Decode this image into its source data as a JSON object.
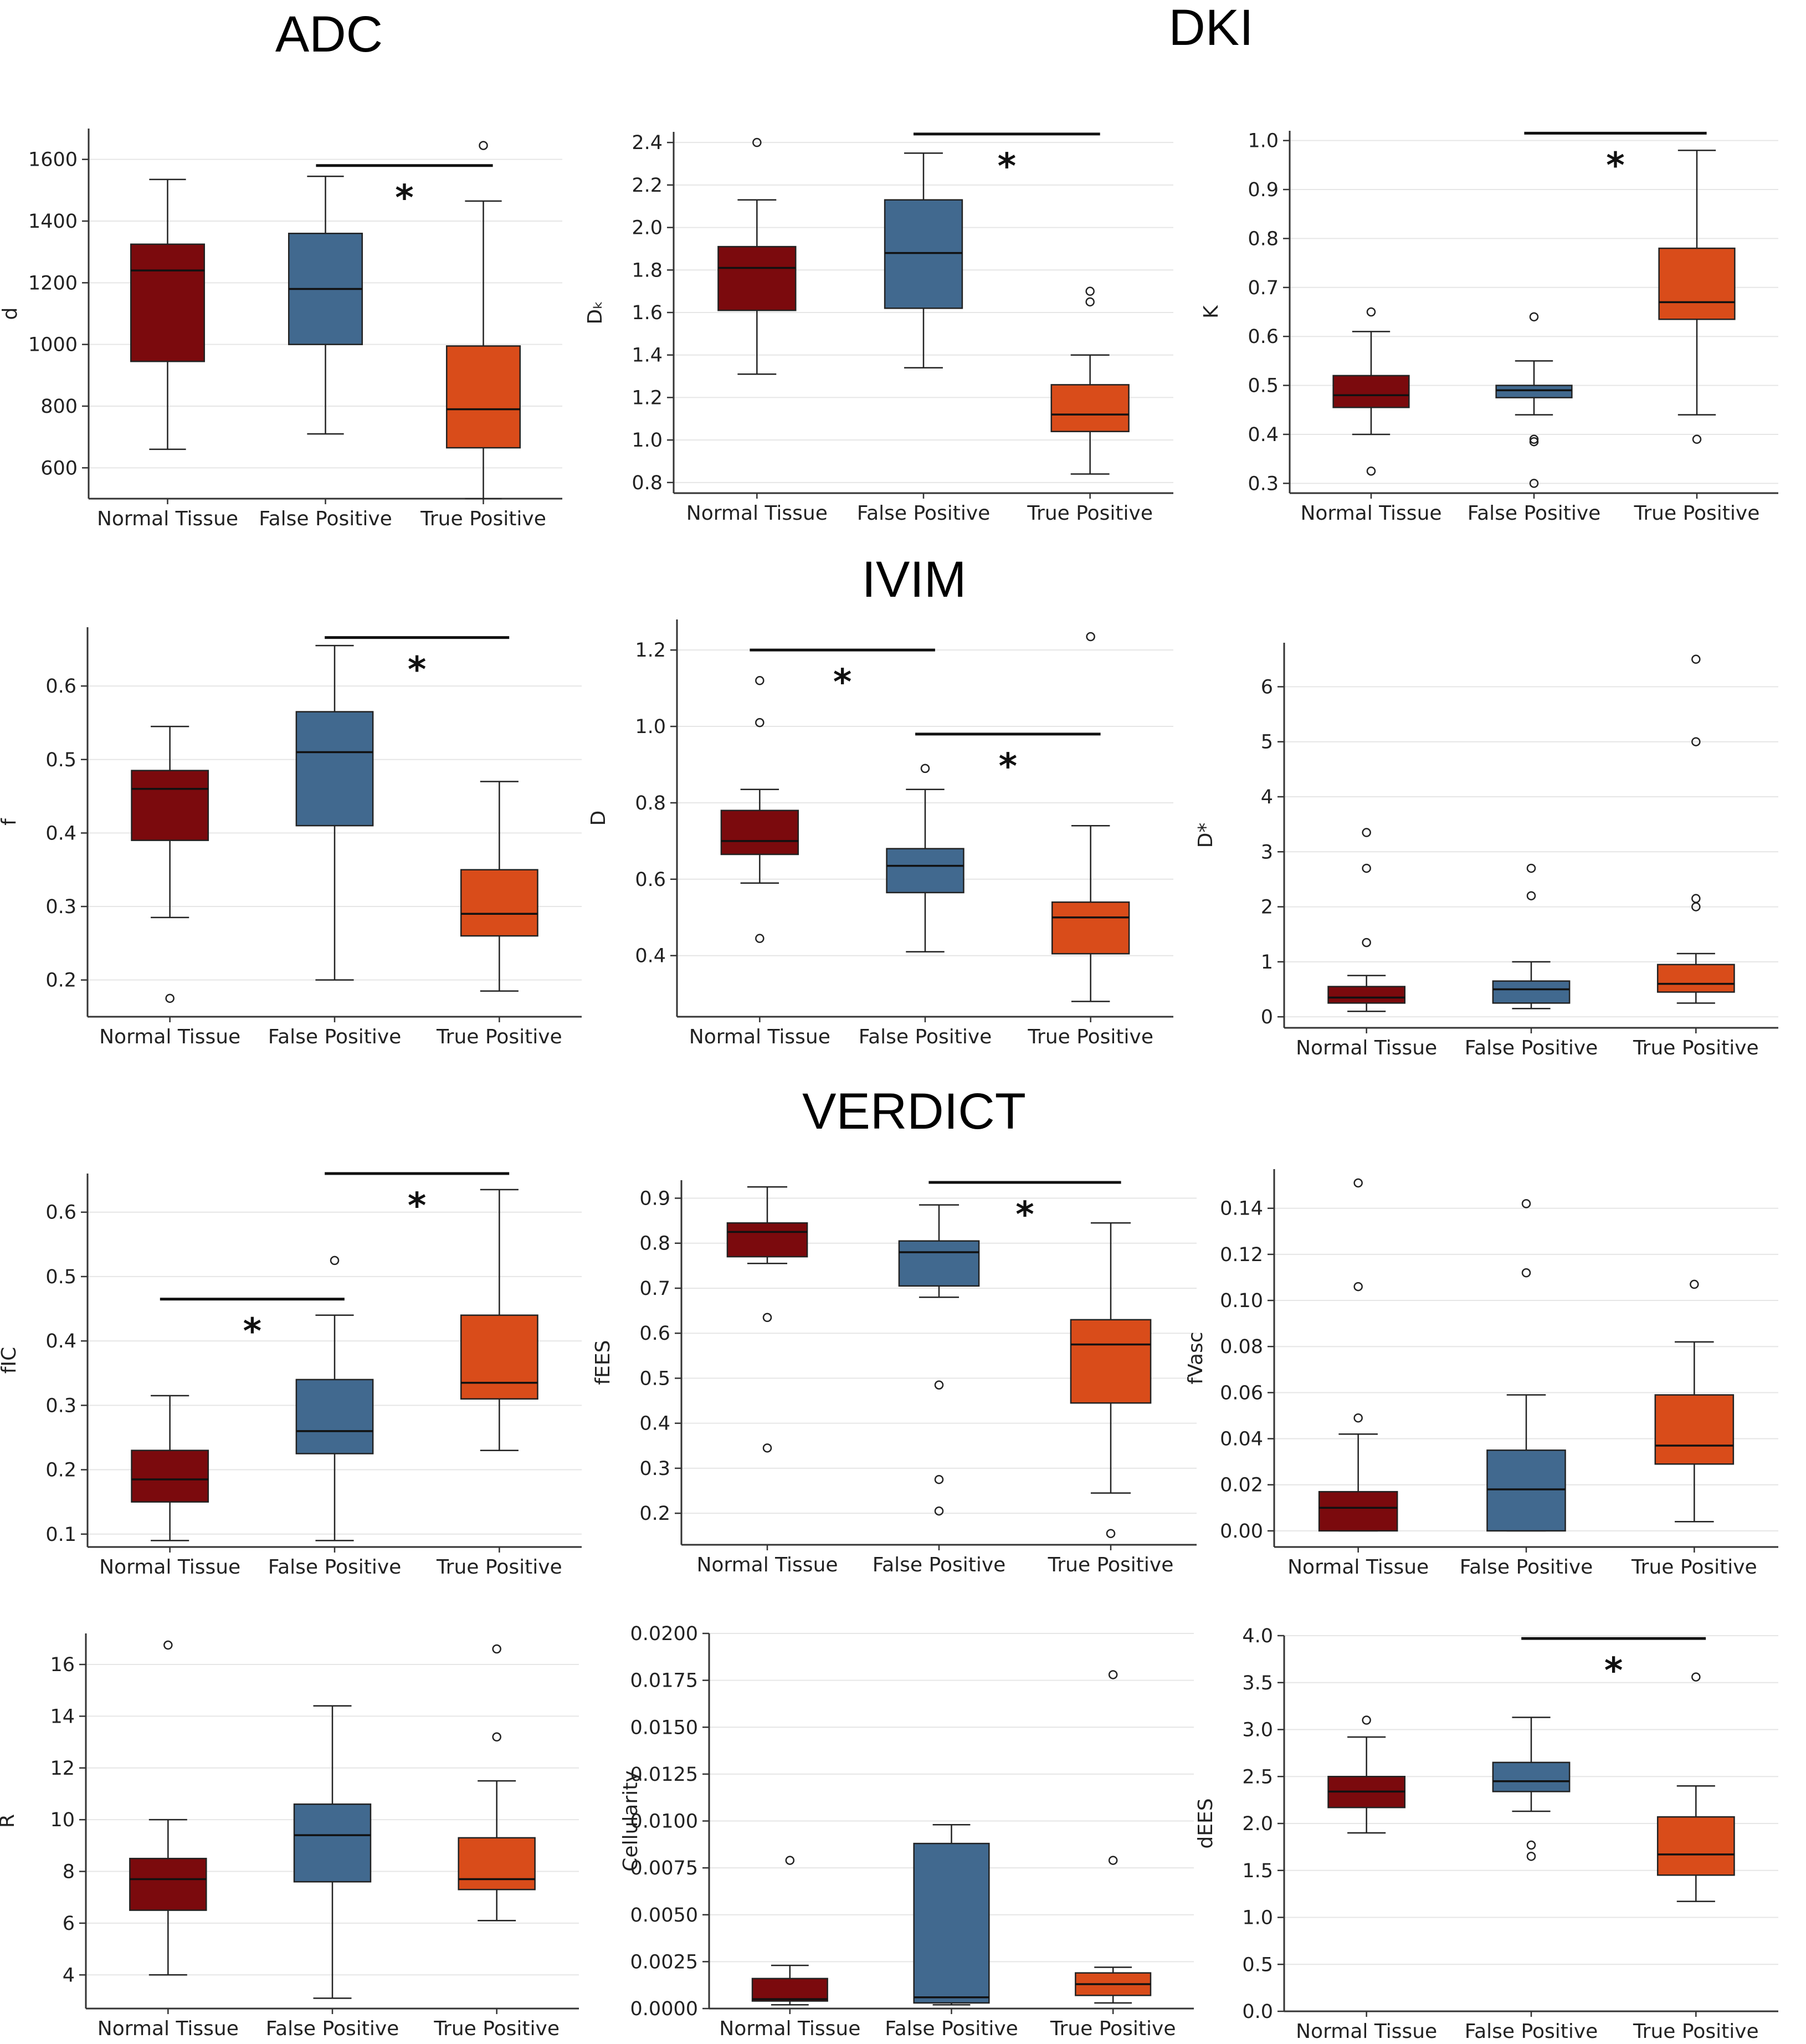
{
  "titles": {
    "adc": "ADC",
    "dki": "DKI",
    "ivim": "IVIM",
    "verdict": "VERDICT"
  },
  "groups": [
    "Normal Tissue",
    "False Positive",
    "True Positive"
  ],
  "colors": {
    "normal": "#7b0a0d",
    "false_positive": "#41698f",
    "true_positive": "#d94c1a",
    "edge": "#222222",
    "grid": "#e6e6e6"
  },
  "chart_data": [
    {
      "type": "box",
      "panel": "ADC",
      "ylabel": "d",
      "ylim": [
        500,
        1700
      ],
      "yticks": [
        600,
        800,
        1000,
        1200,
        1400,
        1600
      ],
      "tick_decimals": 0,
      "categories": [
        "Normal Tissue",
        "False Positive",
        "True Positive"
      ],
      "boxes": [
        {
          "whislo": 660,
          "q1": 945,
          "med": 1240,
          "q3": 1325,
          "whishi": 1535,
          "fliers": []
        },
        {
          "whislo": 710,
          "q1": 1000,
          "med": 1180,
          "q3": 1360,
          "whishi": 1545,
          "fliers": []
        },
        {
          "whislo": 500,
          "q1": 665,
          "med": 790,
          "q3": 995,
          "whishi": 1465,
          "fliers": [
            1645
          ]
        }
      ],
      "significance": [
        {
          "from": 1,
          "to": 2,
          "y": 1580,
          "label": "*"
        }
      ]
    },
    {
      "type": "box",
      "panel": "DKI",
      "ylabel": "Dₖ",
      "ylim": [
        0.75,
        2.45
      ],
      "yticks": [
        0.8,
        1.0,
        1.2,
        1.4,
        1.6,
        1.8,
        2.0,
        2.2,
        2.4
      ],
      "tick_decimals": 1,
      "categories": [
        "Normal Tissue",
        "False Positive",
        "True Positive"
      ],
      "boxes": [
        {
          "whislo": 1.31,
          "q1": 1.61,
          "med": 1.81,
          "q3": 1.91,
          "whishi": 2.13,
          "fliers": [
            2.4
          ]
        },
        {
          "whislo": 1.34,
          "q1": 1.62,
          "med": 1.88,
          "q3": 2.13,
          "whishi": 2.35,
          "fliers": []
        },
        {
          "whislo": 0.84,
          "q1": 1.04,
          "med": 1.12,
          "q3": 1.26,
          "whishi": 1.4,
          "fliers": [
            1.65,
            1.7
          ]
        }
      ],
      "significance": [
        {
          "from": 1,
          "to": 2,
          "y": 2.44,
          "label": "*"
        }
      ]
    },
    {
      "type": "box",
      "panel": "DKI",
      "ylabel": "K",
      "ylim": [
        0.28,
        1.02
      ],
      "yticks": [
        0.3,
        0.4,
        0.5,
        0.6,
        0.7,
        0.8,
        0.9,
        1.0
      ],
      "tick_decimals": 1,
      "categories": [
        "Normal Tissue",
        "False Positive",
        "True Positive"
      ],
      "boxes": [
        {
          "whislo": 0.4,
          "q1": 0.455,
          "med": 0.48,
          "q3": 0.52,
          "whishi": 0.61,
          "fliers": [
            0.65,
            0.325
          ]
        },
        {
          "whislo": 0.44,
          "q1": 0.475,
          "med": 0.49,
          "q3": 0.5,
          "whishi": 0.55,
          "fliers": [
            0.64,
            0.39,
            0.385,
            0.3
          ]
        },
        {
          "whislo": 0.44,
          "q1": 0.635,
          "med": 0.67,
          "q3": 0.78,
          "whishi": 0.98,
          "fliers": [
            0.39
          ]
        }
      ],
      "significance": [
        {
          "from": 1,
          "to": 2,
          "y": 1.015,
          "label": "*"
        }
      ]
    },
    {
      "type": "box",
      "panel": "IVIM",
      "ylabel": "f",
      "ylim": [
        0.15,
        0.68
      ],
      "yticks": [
        0.2,
        0.3,
        0.4,
        0.5,
        0.6
      ],
      "tick_decimals": 1,
      "categories": [
        "Normal Tissue",
        "False Positive",
        "True Positive"
      ],
      "boxes": [
        {
          "whislo": 0.285,
          "q1": 0.39,
          "med": 0.46,
          "q3": 0.485,
          "whishi": 0.545,
          "fliers": [
            0.175
          ]
        },
        {
          "whislo": 0.2,
          "q1": 0.41,
          "med": 0.51,
          "q3": 0.565,
          "whishi": 0.655,
          "fliers": []
        },
        {
          "whislo": 0.185,
          "q1": 0.26,
          "med": 0.29,
          "q3": 0.35,
          "whishi": 0.47,
          "fliers": []
        }
      ],
      "significance": [
        {
          "from": 1,
          "to": 2,
          "y": 0.666,
          "label": "*"
        }
      ]
    },
    {
      "type": "box",
      "panel": "IVIM",
      "ylabel": "D",
      "ylim": [
        0.24,
        1.28
      ],
      "yticks": [
        0.4,
        0.6,
        0.8,
        1.0,
        1.2
      ],
      "tick_decimals": 1,
      "categories": [
        "Normal Tissue",
        "False Positive",
        "True Positive"
      ],
      "boxes": [
        {
          "whislo": 0.59,
          "q1": 0.665,
          "med": 0.7,
          "q3": 0.78,
          "whishi": 0.835,
          "fliers": [
            1.12,
            1.01,
            0.445
          ]
        },
        {
          "whislo": 0.41,
          "q1": 0.565,
          "med": 0.635,
          "q3": 0.68,
          "whishi": 0.835,
          "fliers": [
            0.89
          ]
        },
        {
          "whislo": 0.28,
          "q1": 0.405,
          "med": 0.5,
          "q3": 0.54,
          "whishi": 0.74,
          "fliers": [
            1.235
          ]
        }
      ],
      "significance": [
        {
          "from": 0,
          "to": 1,
          "y": 1.2,
          "label": "*"
        },
        {
          "from": 1,
          "to": 2,
          "y": 0.98,
          "label": "*"
        }
      ]
    },
    {
      "type": "box",
      "panel": "IVIM",
      "ylabel": "D*",
      "ylim": [
        -0.2,
        6.8
      ],
      "yticks": [
        0,
        1,
        2,
        3,
        4,
        5,
        6
      ],
      "tick_decimals": 0,
      "categories": [
        "Normal Tissue",
        "False Positive",
        "True Positive"
      ],
      "boxes": [
        {
          "whislo": 0.1,
          "q1": 0.25,
          "med": 0.35,
          "q3": 0.55,
          "whishi": 0.75,
          "fliers": [
            3.35,
            2.7,
            1.35
          ]
        },
        {
          "whislo": 0.15,
          "q1": 0.25,
          "med": 0.5,
          "q3": 0.65,
          "whishi": 1.0,
          "fliers": [
            2.7,
            2.2
          ]
        },
        {
          "whislo": 0.25,
          "q1": 0.45,
          "med": 0.6,
          "q3": 0.95,
          "whishi": 1.15,
          "fliers": [
            6.5,
            5.0,
            2.15,
            2.0
          ]
        }
      ],
      "significance": []
    },
    {
      "type": "box",
      "panel": "VERDICT",
      "ylabel": "fIC",
      "ylim": [
        0.08,
        0.66
      ],
      "yticks": [
        0.1,
        0.2,
        0.3,
        0.4,
        0.5,
        0.6
      ],
      "tick_decimals": 1,
      "categories": [
        "Normal Tissue",
        "False Positive",
        "True Positive"
      ],
      "boxes": [
        {
          "whislo": 0.09,
          "q1": 0.15,
          "med": 0.185,
          "q3": 0.23,
          "whishi": 0.315,
          "fliers": []
        },
        {
          "whislo": 0.09,
          "q1": 0.225,
          "med": 0.26,
          "q3": 0.34,
          "whishi": 0.44,
          "fliers": [
            0.525
          ]
        },
        {
          "whislo": 0.23,
          "q1": 0.31,
          "med": 0.335,
          "q3": 0.44,
          "whishi": 0.635,
          "fliers": []
        }
      ],
      "significance": [
        {
          "from": 0,
          "to": 1,
          "y": 0.465,
          "label": "*"
        },
        {
          "from": 1,
          "to": 2,
          "y": 0.66,
          "label": "*"
        }
      ]
    },
    {
      "type": "box",
      "panel": "VERDICT",
      "ylabel": "fEES",
      "ylim": [
        0.13,
        0.94
      ],
      "yticks": [
        0.2,
        0.3,
        0.4,
        0.5,
        0.6,
        0.7,
        0.8,
        0.9
      ],
      "tick_decimals": 1,
      "categories": [
        "Normal Tissue",
        "False Positive",
        "True Positive"
      ],
      "boxes": [
        {
          "whislo": 0.755,
          "q1": 0.77,
          "med": 0.825,
          "q3": 0.845,
          "whishi": 0.925,
          "fliers": [
            0.635,
            0.345
          ]
        },
        {
          "whislo": 0.68,
          "q1": 0.705,
          "med": 0.78,
          "q3": 0.805,
          "whishi": 0.885,
          "fliers": [
            0.485,
            0.275,
            0.205
          ]
        },
        {
          "whislo": 0.245,
          "q1": 0.445,
          "med": 0.575,
          "q3": 0.63,
          "whishi": 0.845,
          "fliers": [
            0.155
          ]
        }
      ],
      "significance": [
        {
          "from": 1,
          "to": 2,
          "y": 0.935,
          "label": "*"
        }
      ]
    },
    {
      "type": "box",
      "panel": "VERDICT",
      "ylabel": "fVasc",
      "ylim": [
        -0.007,
        0.157
      ],
      "yticks": [
        0.0,
        0.02,
        0.04,
        0.06,
        0.08,
        0.1,
        0.12,
        0.14
      ],
      "tick_decimals": 2,
      "categories": [
        "Normal Tissue",
        "False Positive",
        "True Positive"
      ],
      "boxes": [
        {
          "whislo": 0.0,
          "q1": 0.0,
          "med": 0.01,
          "q3": 0.017,
          "whishi": 0.042,
          "fliers": [
            0.151,
            0.106,
            0.049
          ]
        },
        {
          "whislo": 0.0,
          "q1": 0.0,
          "med": 0.018,
          "q3": 0.035,
          "whishi": 0.059,
          "fliers": [
            0.142,
            0.112
          ]
        },
        {
          "whislo": 0.004,
          "q1": 0.029,
          "med": 0.037,
          "q3": 0.059,
          "whishi": 0.082,
          "fliers": [
            0.107
          ]
        }
      ],
      "significance": []
    },
    {
      "type": "box",
      "panel": "VERDICT",
      "ylabel": "R",
      "ylim": [
        2.7,
        17.2
      ],
      "yticks": [
        4,
        6,
        8,
        10,
        12,
        14,
        16
      ],
      "tick_decimals": 0,
      "categories": [
        "Normal Tissue",
        "False Positive",
        "True Positive"
      ],
      "boxes": [
        {
          "whislo": 4.0,
          "q1": 6.5,
          "med": 7.7,
          "q3": 8.5,
          "whishi": 10.0,
          "fliers": [
            16.75
          ]
        },
        {
          "whislo": 3.1,
          "q1": 7.6,
          "med": 9.4,
          "q3": 10.6,
          "whishi": 14.4,
          "fliers": []
        },
        {
          "whislo": 6.1,
          "q1": 7.3,
          "med": 7.7,
          "q3": 9.3,
          "whishi": 11.5,
          "fliers": [
            16.6,
            13.2
          ]
        }
      ],
      "significance": []
    },
    {
      "type": "box",
      "panel": "VERDICT",
      "ylabel": "Cellularity",
      "ylim": [
        0,
        0.02
      ],
      "yticks": [
        0.0,
        0.0025,
        0.005,
        0.0075,
        0.01,
        0.0125,
        0.015,
        0.0175,
        0.02
      ],
      "tick_decimals": 4,
      "categories": [
        "Normal Tissue",
        "False Positive",
        "True Positive"
      ],
      "boxes": [
        {
          "whislo": 0.0002,
          "q1": 0.0004,
          "med": 0.0005,
          "q3": 0.0016,
          "whishi": 0.0023,
          "fliers": [
            0.0079
          ]
        },
        {
          "whislo": 0.0002,
          "q1": 0.0003,
          "med": 0.0006,
          "q3": 0.0088,
          "whishi": 0.0098,
          "fliers": []
        },
        {
          "whislo": 0.0003,
          "q1": 0.0007,
          "med": 0.0013,
          "q3": 0.0019,
          "whishi": 0.0022,
          "fliers": [
            0.0178,
            0.0079
          ]
        }
      ],
      "significance": []
    },
    {
      "type": "box",
      "panel": "VERDICT",
      "ylabel": "dEES",
      "ylim": [
        0,
        4.0
      ],
      "yticks": [
        0.0,
        0.5,
        1.0,
        1.5,
        2.0,
        2.5,
        3.0,
        3.5,
        4.0
      ],
      "tick_decimals": 1,
      "categories": [
        "Normal Tissue",
        "False Positive",
        "True Positive"
      ],
      "boxes": [
        {
          "whislo": 1.9,
          "q1": 2.17,
          "med": 2.34,
          "q3": 2.5,
          "whishi": 2.92,
          "fliers": [
            3.1
          ]
        },
        {
          "whislo": 2.13,
          "q1": 2.34,
          "med": 2.45,
          "q3": 2.65,
          "whishi": 3.13,
          "fliers": [
            1.77,
            1.65
          ]
        },
        {
          "whislo": 1.17,
          "q1": 1.45,
          "med": 1.67,
          "q3": 2.07,
          "whishi": 2.4,
          "fliers": [
            3.56
          ]
        }
      ],
      "significance": [
        {
          "from": 1,
          "to": 2,
          "y": 3.97,
          "label": "*"
        }
      ]
    }
  ]
}
